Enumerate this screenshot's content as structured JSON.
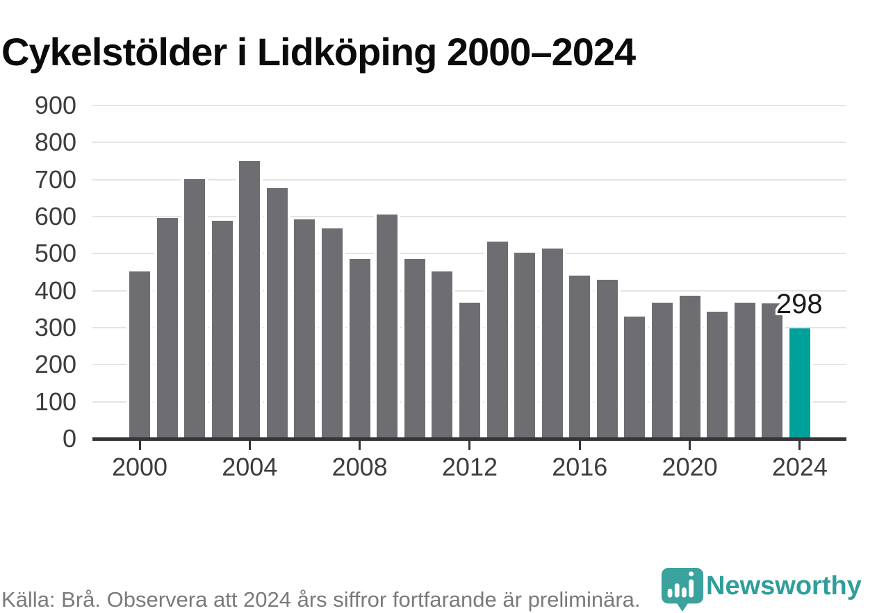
{
  "chart_data": {
    "type": "bar",
    "title": "Cykelstölder i Lidköping 2000–2024",
    "x": [
      2000,
      2001,
      2002,
      2003,
      2004,
      2005,
      2006,
      2007,
      2008,
      2009,
      2010,
      2011,
      2012,
      2013,
      2014,
      2015,
      2016,
      2017,
      2018,
      2019,
      2020,
      2021,
      2022,
      2023,
      2024
    ],
    "values": [
      452,
      596,
      701,
      589,
      750,
      676,
      592,
      568,
      486,
      605,
      486,
      451,
      367,
      533,
      502,
      513,
      441,
      430,
      330,
      367,
      387,
      343,
      367,
      366,
      298
    ],
    "highlight_x": 2024,
    "highlight_label": "298",
    "ylim": [
      0,
      900
    ],
    "yticks": [
      0,
      100,
      200,
      300,
      400,
      500,
      600,
      700,
      800,
      900
    ],
    "xticks": [
      2000,
      2004,
      2008,
      2012,
      2016,
      2020,
      2024
    ],
    "grid": true,
    "legend": "none",
    "bar_color": "#6e6d72",
    "highlight_color": "#00a09b",
    "gridline_color": "#e4e4e4",
    "axis_color": "#363339"
  },
  "footer": {
    "source_note": "Källa: Brå. Observera att 2024 års siffror fortfarande är preliminära."
  },
  "branding": {
    "logo_text": "Newsworthy",
    "logo_color": "#2f9e9b",
    "logo_icon": "newsworthy-pin-icon"
  }
}
